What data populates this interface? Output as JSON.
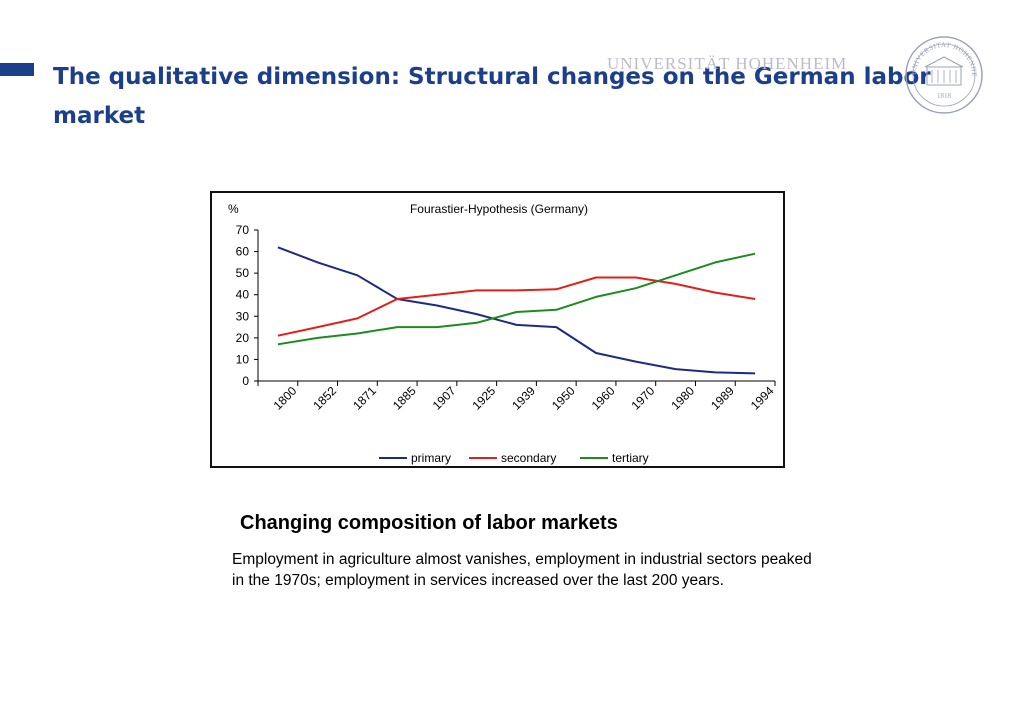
{
  "slide": {
    "title": "The qualitative dimension: Structural changes on the German labor market",
    "logo_text": "UNIVERSITÄT HOHENHEIM",
    "seal_top_text": "UNIVERSITAT HOHENHEIM",
    "seal_year": "1818",
    "accent_color": "#1b3f8b",
    "subtitle": "Changing composition of labor markets",
    "body": "Employment in agriculture  almost vanishes, employment in industrial sectors peaked in the 1970s; employment in services increased over the last 200 years."
  },
  "chart_data": {
    "type": "line",
    "title": "Fourastier-Hypothesis (Germany)",
    "ylabel": "%",
    "xlabel": "",
    "ylim": [
      0,
      70
    ],
    "yticks": [
      0,
      10,
      20,
      30,
      40,
      50,
      60,
      70
    ],
    "x_tick_labels": [
      "1800",
      "1852",
      "1871",
      "1885",
      "1907",
      "1925",
      "1939",
      "1950",
      "1960",
      "1970",
      "1980",
      "1989",
      "1994"
    ],
    "legend_position": "bottom",
    "grid": false,
    "series": [
      {
        "name": "primary",
        "color": "#1f2a80",
        "values": [
          62,
          55,
          49,
          38,
          35,
          31,
          26,
          25,
          13,
          9,
          5.5,
          4,
          3.5
        ]
      },
      {
        "name": "secondary",
        "color": "#e0201b",
        "values": [
          21,
          25,
          29,
          38,
          40,
          42,
          42,
          42.5,
          48,
          48,
          45,
          41,
          38
        ]
      },
      {
        "name": "tertiary",
        "color": "#1f8a1f",
        "values": [
          17,
          20,
          22,
          25,
          25,
          27,
          32,
          33,
          39,
          43,
          49,
          55,
          59
        ]
      }
    ]
  }
}
